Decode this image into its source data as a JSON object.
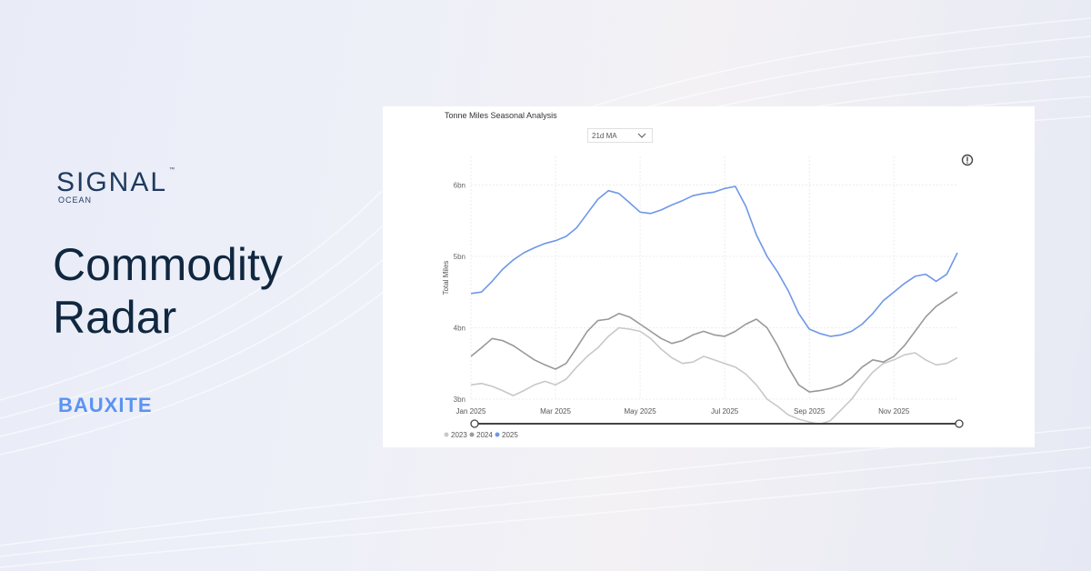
{
  "brand": {
    "name": "SIGNAL",
    "sub": "OCEAN",
    "tm": "™"
  },
  "hero": {
    "title": "Commodity Radar",
    "tag": "BAUXITE"
  },
  "panel": {
    "title": "Tonne Miles Seasonal Analysis",
    "dropdown_value": "21d MA",
    "info_icon": "info-icon"
  },
  "colors": {
    "y2023": "#c8c8c8",
    "y2024": "#999999",
    "y2025": "#6f97e8",
    "navy": "#10273f",
    "accent": "#5b93f0"
  },
  "chart_data": {
    "type": "line",
    "title": "Tonne Miles Seasonal Analysis",
    "ylabel": "Total Miles",
    "xlabel": "",
    "ylim": [
      3.0,
      6.4
    ],
    "yticks": [
      3,
      4,
      5,
      6
    ],
    "ytick_labels": [
      "3bn",
      "4bn",
      "5bn",
      "6bn"
    ],
    "xlim": [
      0,
      11.5
    ],
    "xticks": [
      0,
      2,
      4,
      6,
      8,
      10
    ],
    "xtick_labels": [
      "Jan 2025",
      "Mar 2025",
      "May 2025",
      "Jul 2025",
      "Sep 2025",
      "Nov 2025"
    ],
    "grid": true,
    "legend_position": "bottom-left",
    "series": [
      {
        "name": "2023",
        "x": [
          0,
          0.25,
          0.5,
          0.75,
          1,
          1.25,
          1.5,
          1.75,
          2,
          2.25,
          2.5,
          2.75,
          3,
          3.25,
          3.5,
          3.75,
          4,
          4.25,
          4.5,
          4.75,
          5,
          5.25,
          5.5,
          5.75,
          6,
          6.25,
          6.5,
          6.75,
          7,
          7.25,
          7.5,
          7.75,
          8,
          8.25,
          8.5,
          8.75,
          9,
          9.25,
          9.5,
          9.75,
          10,
          10.25,
          10.5,
          10.75,
          11,
          11.25,
          11.5
        ],
        "values": [
          3.2,
          3.22,
          3.18,
          3.12,
          3.05,
          3.12,
          3.2,
          3.25,
          3.2,
          3.28,
          3.45,
          3.6,
          3.72,
          3.88,
          4.0,
          3.98,
          3.95,
          3.85,
          3.7,
          3.58,
          3.5,
          3.52,
          3.6,
          3.55,
          3.5,
          3.45,
          3.35,
          3.2,
          3.0,
          2.9,
          2.78,
          2.72,
          2.68,
          2.65,
          2.7,
          2.85,
          3.0,
          3.2,
          3.38,
          3.5,
          3.55,
          3.62,
          3.65,
          3.55,
          3.48,
          3.5,
          3.58
        ]
      },
      {
        "name": "2024",
        "x": [
          0,
          0.25,
          0.5,
          0.75,
          1,
          1.25,
          1.5,
          1.75,
          2,
          2.25,
          2.5,
          2.75,
          3,
          3.25,
          3.5,
          3.75,
          4,
          4.25,
          4.5,
          4.75,
          5,
          5.25,
          5.5,
          5.75,
          6,
          6.25,
          6.5,
          6.75,
          7,
          7.25,
          7.5,
          7.75,
          8,
          8.25,
          8.5,
          8.75,
          9,
          9.25,
          9.5,
          9.75,
          10,
          10.25,
          10.5,
          10.75,
          11,
          11.25,
          11.5
        ],
        "values": [
          3.6,
          3.72,
          3.85,
          3.82,
          3.75,
          3.65,
          3.55,
          3.48,
          3.42,
          3.5,
          3.72,
          3.95,
          4.1,
          4.12,
          4.2,
          4.15,
          4.05,
          3.95,
          3.85,
          3.78,
          3.82,
          3.9,
          3.95,
          3.9,
          3.88,
          3.95,
          4.05,
          4.12,
          4.0,
          3.75,
          3.45,
          3.2,
          3.1,
          3.12,
          3.15,
          3.2,
          3.3,
          3.45,
          3.55,
          3.52,
          3.6,
          3.75,
          3.95,
          4.15,
          4.3,
          4.4,
          4.5
        ]
      },
      {
        "name": "2025",
        "x": [
          0,
          0.25,
          0.5,
          0.75,
          1,
          1.25,
          1.5,
          1.75,
          2,
          2.25,
          2.5,
          2.75,
          3,
          3.25,
          3.5,
          3.75,
          4,
          4.25,
          4.5,
          4.75,
          5,
          5.25,
          5.5,
          5.75,
          6,
          6.25,
          6.5,
          6.75,
          7,
          7.25,
          7.5,
          7.75,
          8,
          8.25,
          8.5,
          8.75,
          9,
          9.25,
          9.5,
          9.75,
          10,
          10.25,
          10.5,
          10.75,
          11,
          11.25,
          11.5
        ],
        "values": [
          4.48,
          4.5,
          4.65,
          4.82,
          4.95,
          5.05,
          5.12,
          5.18,
          5.22,
          5.28,
          5.4,
          5.6,
          5.8,
          5.92,
          5.88,
          5.75,
          5.62,
          5.6,
          5.65,
          5.72,
          5.78,
          5.85,
          5.88,
          5.9,
          5.95,
          5.98,
          5.7,
          5.3,
          5.0,
          4.78,
          4.52,
          4.2,
          3.98,
          3.92,
          3.88,
          3.9,
          3.95,
          4.05,
          4.2,
          4.38,
          4.5,
          4.62,
          4.72,
          4.75,
          4.65,
          4.75,
          5.05
        ]
      }
    ]
  }
}
